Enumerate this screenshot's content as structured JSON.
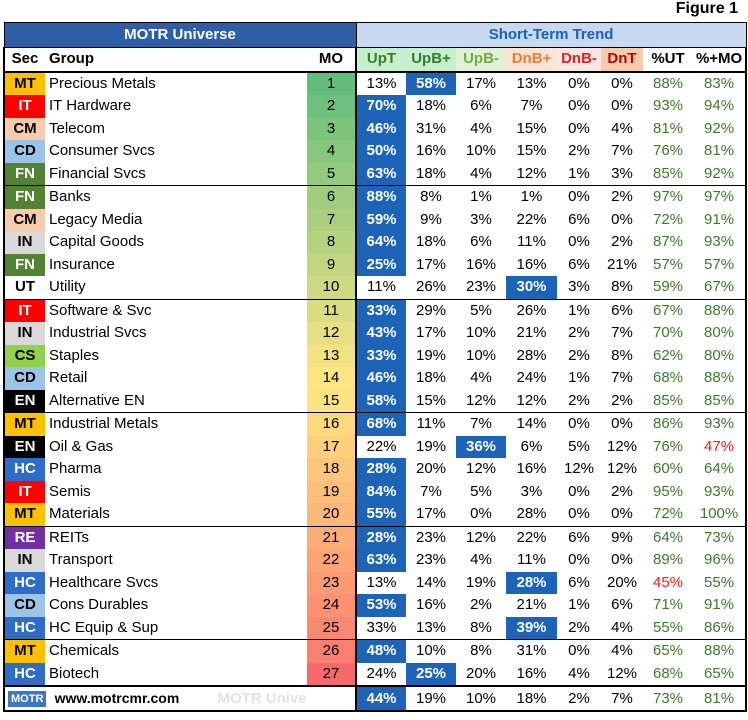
{
  "figure_label": "Figure 1",
  "left_header": "MOTR Universe",
  "right_header": "Short-Term Trend",
  "columns": {
    "sec": "Sec",
    "group": "Group",
    "mo": "MO",
    "upt": "UpT",
    "upbp": "UpB+",
    "upbm": "UpB-",
    "dnbp": "DnB+",
    "dnbm": "DnB-",
    "dnt": "DnT",
    "put": "%UT",
    "pmo": "%+MO"
  },
  "colors": {
    "upt_head": "#c6efce",
    "upbp_head": "#c6efce",
    "upbm_head": "#e2f0d9",
    "dnbp_head": "#fce4d6",
    "dnbm_head": "#fbe5e5",
    "dnt_head": "#f8cbad",
    "bar": "#2e5fa6",
    "highlight": "#1d64b8",
    "pos_text": "#3d7a2a",
    "neg_text": "#e8201f",
    "upbp_text": "#2e7d32",
    "upbm_text": "#70ad47",
    "dnbp_text": "#ed7d31",
    "dnbm_text": "#e8201f",
    "dnt_text": "#c00000"
  },
  "sector_colors": {
    "MT": "#ffc000",
    "IT": "#ff0000",
    "CM": "#f8cbad",
    "CD": "#9dc3e6",
    "FN": "#548235",
    "IN": "#d9d9d9",
    "UT": "#ffffff",
    "CS": "#92d050",
    "EN": "#000000",
    "HC": "#2f6cc7",
    "RE": "#7030a0"
  },
  "sector_text": {
    "MT": "#000000",
    "IT": "#ffffff",
    "CM": "#000000",
    "CD": "#000000",
    "FN": "#ffffff",
    "IN": "#000000",
    "UT": "#000000",
    "CS": "#000000",
    "EN": "#ffffff",
    "HC": "#ffffff",
    "RE": "#ffffff"
  },
  "chart_data": {
    "type": "table",
    "title": "Figure 1",
    "rows": [
      {
        "sec": "MT",
        "group": "Precious Metals",
        "mo": 1,
        "upt": "13%",
        "upbp": "58%",
        "upbm": "17%",
        "dnbp": "13%",
        "dnbm": "0%",
        "dnt": "0%",
        "put": "88%",
        "pmo": "83%",
        "hl": "upbp"
      },
      {
        "sec": "IT",
        "group": "IT Hardware",
        "mo": 2,
        "upt": "70%",
        "upbp": "18%",
        "upbm": "6%",
        "dnbp": "7%",
        "dnbm": "0%",
        "dnt": "0%",
        "put": "93%",
        "pmo": "94%",
        "hl": "upt"
      },
      {
        "sec": "CM",
        "group": "Telecom",
        "mo": 3,
        "upt": "46%",
        "upbp": "31%",
        "upbm": "4%",
        "dnbp": "15%",
        "dnbm": "0%",
        "dnt": "4%",
        "put": "81%",
        "pmo": "92%",
        "hl": "upt"
      },
      {
        "sec": "CD",
        "group": "Consumer Svcs",
        "mo": 4,
        "upt": "50%",
        "upbp": "16%",
        "upbm": "10%",
        "dnbp": "15%",
        "dnbm": "2%",
        "dnt": "7%",
        "put": "76%",
        "pmo": "81%",
        "hl": "upt"
      },
      {
        "sec": "FN",
        "group": "Financial Svcs",
        "mo": 5,
        "upt": "63%",
        "upbp": "18%",
        "upbm": "4%",
        "dnbp": "12%",
        "dnbm": "1%",
        "dnt": "3%",
        "put": "85%",
        "pmo": "92%",
        "hl": "upt"
      },
      {
        "sec": "FN",
        "group": "Banks",
        "mo": 6,
        "upt": "88%",
        "upbp": "8%",
        "upbm": "1%",
        "dnbp": "1%",
        "dnbm": "0%",
        "dnt": "2%",
        "put": "97%",
        "pmo": "97%",
        "hl": "upt"
      },
      {
        "sec": "CM",
        "group": "Legacy Media",
        "mo": 7,
        "upt": "59%",
        "upbp": "9%",
        "upbm": "3%",
        "dnbp": "22%",
        "dnbm": "6%",
        "dnt": "0%",
        "put": "72%",
        "pmo": "91%",
        "hl": "upt"
      },
      {
        "sec": "IN",
        "group": "Capital Goods",
        "mo": 8,
        "upt": "64%",
        "upbp": "18%",
        "upbm": "6%",
        "dnbp": "11%",
        "dnbm": "0%",
        "dnt": "2%",
        "put": "87%",
        "pmo": "93%",
        "hl": "upt"
      },
      {
        "sec": "FN",
        "group": "Insurance",
        "mo": 9,
        "upt": "25%",
        "upbp": "17%",
        "upbm": "16%",
        "dnbp": "16%",
        "dnbm": "6%",
        "dnt": "21%",
        "put": "57%",
        "pmo": "57%",
        "hl": "upt"
      },
      {
        "sec": "UT",
        "group": "Utility",
        "mo": 10,
        "upt": "11%",
        "upbp": "26%",
        "upbm": "23%",
        "dnbp": "30%",
        "dnbm": "3%",
        "dnt": "8%",
        "put": "59%",
        "pmo": "67%",
        "hl": "dnbp"
      },
      {
        "sec": "IT",
        "group": "Software & Svc",
        "mo": 11,
        "upt": "33%",
        "upbp": "29%",
        "upbm": "5%",
        "dnbp": "26%",
        "dnbm": "1%",
        "dnt": "6%",
        "put": "67%",
        "pmo": "88%",
        "hl": "upt"
      },
      {
        "sec": "IN",
        "group": "Industrial Svcs",
        "mo": 12,
        "upt": "43%",
        "upbp": "17%",
        "upbm": "10%",
        "dnbp": "21%",
        "dnbm": "2%",
        "dnt": "7%",
        "put": "70%",
        "pmo": "80%",
        "hl": "upt"
      },
      {
        "sec": "CS",
        "group": "Staples",
        "mo": 13,
        "upt": "33%",
        "upbp": "19%",
        "upbm": "10%",
        "dnbp": "28%",
        "dnbm": "2%",
        "dnt": "8%",
        "put": "62%",
        "pmo": "80%",
        "hl": "upt"
      },
      {
        "sec": "CD",
        "group": "Retail",
        "mo": 14,
        "upt": "46%",
        "upbp": "18%",
        "upbm": "4%",
        "dnbp": "24%",
        "dnbm": "1%",
        "dnt": "7%",
        "put": "68%",
        "pmo": "88%",
        "hl": "upt"
      },
      {
        "sec": "EN",
        "group": "Alternative EN",
        "mo": 15,
        "upt": "58%",
        "upbp": "15%",
        "upbm": "12%",
        "dnbp": "12%",
        "dnbm": "2%",
        "dnt": "2%",
        "put": "85%",
        "pmo": "85%",
        "hl": "upt"
      },
      {
        "sec": "MT",
        "group": "Industrial Metals",
        "mo": 16,
        "upt": "68%",
        "upbp": "11%",
        "upbm": "7%",
        "dnbp": "14%",
        "dnbm": "0%",
        "dnt": "0%",
        "put": "86%",
        "pmo": "93%",
        "hl": "upt"
      },
      {
        "sec": "EN",
        "group": "Oil & Gas",
        "mo": 17,
        "upt": "22%",
        "upbp": "19%",
        "upbm": "36%",
        "dnbp": "6%",
        "dnbm": "5%",
        "dnt": "12%",
        "put": "76%",
        "pmo": "47%",
        "hl": "upbm",
        "pmo_red": true
      },
      {
        "sec": "HC",
        "group": "Pharma",
        "mo": 18,
        "upt": "28%",
        "upbp": "20%",
        "upbm": "12%",
        "dnbp": "16%",
        "dnbm": "12%",
        "dnt": "12%",
        "put": "60%",
        "pmo": "64%",
        "hl": "upt"
      },
      {
        "sec": "IT",
        "group": "Semis",
        "mo": 19,
        "upt": "84%",
        "upbp": "7%",
        "upbm": "5%",
        "dnbp": "3%",
        "dnbm": "0%",
        "dnt": "2%",
        "put": "95%",
        "pmo": "93%",
        "hl": "upt"
      },
      {
        "sec": "MT",
        "group": "Materials",
        "mo": 20,
        "upt": "55%",
        "upbp": "17%",
        "upbm": "0%",
        "dnbp": "28%",
        "dnbm": "0%",
        "dnt": "0%",
        "put": "72%",
        "pmo": "100%",
        "hl": "upt"
      },
      {
        "sec": "RE",
        "group": "REITs",
        "mo": 21,
        "upt": "28%",
        "upbp": "23%",
        "upbm": "12%",
        "dnbp": "22%",
        "dnbm": "6%",
        "dnt": "9%",
        "put": "64%",
        "pmo": "73%",
        "hl": "upt"
      },
      {
        "sec": "IN",
        "group": "Transport",
        "mo": 22,
        "upt": "63%",
        "upbp": "23%",
        "upbm": "4%",
        "dnbp": "11%",
        "dnbm": "0%",
        "dnt": "0%",
        "put": "89%",
        "pmo": "96%",
        "hl": "upt"
      },
      {
        "sec": "HC",
        "group": "Healthcare Svcs",
        "mo": 23,
        "upt": "13%",
        "upbp": "14%",
        "upbm": "19%",
        "dnbp": "28%",
        "dnbm": "6%",
        "dnt": "20%",
        "put": "45%",
        "pmo": "55%",
        "hl": "dnbp",
        "put_red": true
      },
      {
        "sec": "CD",
        "group": "Cons Durables",
        "mo": 24,
        "upt": "53%",
        "upbp": "16%",
        "upbm": "2%",
        "dnbp": "21%",
        "dnbm": "1%",
        "dnt": "6%",
        "put": "71%",
        "pmo": "91%",
        "hl": "upt"
      },
      {
        "sec": "HC",
        "group": "HC Equip & Sup",
        "mo": 25,
        "upt": "33%",
        "upbp": "13%",
        "upbm": "8%",
        "dnbp": "39%",
        "dnbm": "2%",
        "dnt": "4%",
        "put": "55%",
        "pmo": "86%",
        "hl": "dnbp"
      },
      {
        "sec": "MT",
        "group": "Chemicals",
        "mo": 26,
        "upt": "48%",
        "upbp": "10%",
        "upbm": "8%",
        "dnbp": "31%",
        "dnbm": "0%",
        "dnt": "4%",
        "put": "65%",
        "pmo": "88%",
        "hl": "upt"
      },
      {
        "sec": "HC",
        "group": "Biotech",
        "mo": 27,
        "upt": "24%",
        "upbp": "25%",
        "upbm": "20%",
        "dnbp": "16%",
        "dnbm": "4%",
        "dnt": "12%",
        "put": "68%",
        "pmo": "65%",
        "hl": "upbp"
      }
    ],
    "mo_colors": [
      "#63be7b",
      "#6ec17c",
      "#7ac47c",
      "#86c77d",
      "#92ca7e",
      "#9ecd7f",
      "#aad07f",
      "#b6d380",
      "#c2d681",
      "#ced982",
      "#dadc82",
      "#e6df83",
      "#f2e284",
      "#fee583",
      "#fde282",
      "#fdd980",
      "#fdd07e",
      "#fcc77c",
      "#fcbf7b",
      "#fbb679",
      "#fbad77",
      "#fba476",
      "#fa9b74",
      "#fa9272",
      "#f98970",
      "#f8806e",
      "#f8696b"
    ],
    "total": {
      "upt": "44%",
      "upbp": "19%",
      "upbm": "10%",
      "dnbp": "18%",
      "dnbm": "2%",
      "dnt": "7%",
      "put": "73%",
      "pmo": "81%"
    },
    "footer": {
      "logo": "MOTR",
      "url": "www.motrcmr.com",
      "watermark": "MOTR Universe"
    }
  }
}
